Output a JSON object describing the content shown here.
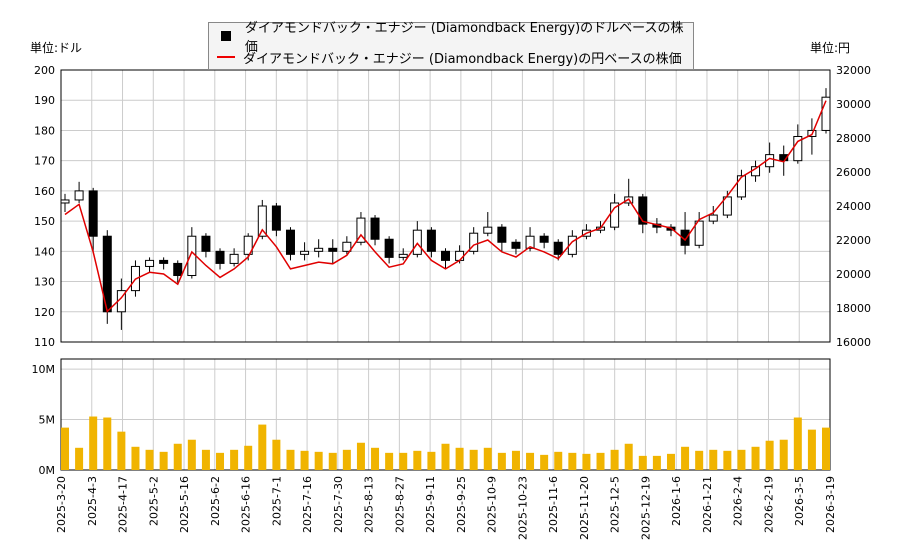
{
  "chart_data": {
    "type": "candlestick+line+bar",
    "left_unit": "単位:ドル",
    "right_unit": "単位:円",
    "legend": [
      "ダイアモンドバック・エナジー (Diamondback Energy)のドルベースの株価",
      "ダイアモンドバック・エナジー (Diamondback Energy)の円ベースの株価"
    ],
    "ylim_left": [
      110,
      200
    ],
    "ylim_right": [
      16000,
      32000
    ],
    "ylim_volume": [
      0,
      11000000
    ],
    "yticks_left": [
      "110",
      "120",
      "130",
      "140",
      "150",
      "160",
      "170",
      "180",
      "190",
      "200"
    ],
    "yticks_right": [
      "16000",
      "18000",
      "20000",
      "22000",
      "24000",
      "26000",
      "28000",
      "30000",
      "32000"
    ],
    "yticks_volume": [
      {
        "v": 0,
        "label": "0M"
      },
      {
        "v": 5000000,
        "label": "5M"
      },
      {
        "v": 10000000,
        "label": "10M"
      }
    ],
    "xticks": [
      "2025-3-20",
      "2025-4-3",
      "2025-4-17",
      "2025-5-2",
      "2025-5-16",
      "2025-6-2",
      "2025-6-16",
      "2025-7-1",
      "2025-7-16",
      "2025-7-30",
      "2025-8-13",
      "2025-8-27",
      "2025-9-11",
      "2025-9-25",
      "2025-10-9",
      "2025-10-23",
      "2025-11-6",
      "2025-11-20",
      "2025-12-5",
      "2025-12-19",
      "2026-1-6",
      "2026-1-21",
      "2026-2-4",
      "2026-2-19",
      "2026-3-5",
      "2026-3-19"
    ],
    "ohlc_usd": [
      [
        156,
        159,
        153,
        157
      ],
      [
        157,
        163,
        156,
        160
      ],
      [
        160,
        161,
        140,
        145
      ],
      [
        145,
        147,
        116,
        120
      ],
      [
        120,
        131,
        114,
        127
      ],
      [
        127,
        137,
        125,
        135
      ],
      [
        135,
        138,
        133,
        137
      ],
      [
        137,
        138,
        134,
        136
      ],
      [
        136,
        137,
        129,
        132
      ],
      [
        132,
        148,
        131,
        145
      ],
      [
        145,
        146,
        138,
        140
      ],
      [
        140,
        141,
        134,
        136
      ],
      [
        136,
        141,
        135,
        139
      ],
      [
        139,
        146,
        137,
        145
      ],
      [
        145,
        157,
        144,
        155
      ],
      [
        155,
        156,
        145,
        147
      ],
      [
        147,
        148,
        137,
        139
      ],
      [
        139,
        143,
        137,
        140
      ],
      [
        140,
        144,
        138,
        141
      ],
      [
        141,
        144,
        136,
        140
      ],
      [
        140,
        145,
        139,
        143
      ],
      [
        143,
        153,
        142,
        151
      ],
      [
        151,
        152,
        142,
        144
      ],
      [
        144,
        145,
        136,
        138
      ],
      [
        138,
        141,
        137,
        139
      ],
      [
        139,
        150,
        138,
        147
      ],
      [
        147,
        148,
        138,
        140
      ],
      [
        140,
        141,
        134,
        137
      ],
      [
        137,
        142,
        136,
        140
      ],
      [
        140,
        148,
        139,
        146
      ],
      [
        146,
        153,
        145,
        148
      ],
      [
        148,
        149,
        140,
        143
      ],
      [
        143,
        144,
        139,
        141
      ],
      [
        141,
        148,
        140,
        145
      ],
      [
        145,
        146,
        141,
        143
      ],
      [
        143,
        144,
        137,
        139
      ],
      [
        139,
        147,
        138,
        145
      ],
      [
        145,
        149,
        144,
        147
      ],
      [
        147,
        150,
        146,
        148
      ],
      [
        148,
        159,
        147,
        156
      ],
      [
        156,
        164,
        155,
        158
      ],
      [
        158,
        159,
        146,
        149
      ],
      [
        149,
        151,
        146,
        148
      ],
      [
        148,
        149,
        145,
        147
      ],
      [
        147,
        153,
        139,
        142
      ],
      [
        142,
        153,
        141,
        150
      ],
      [
        150,
        155,
        149,
        152
      ],
      [
        152,
        160,
        151,
        158
      ],
      [
        158,
        167,
        157,
        165
      ],
      [
        165,
        170,
        163,
        168
      ],
      [
        168,
        176,
        166,
        172
      ],
      [
        172,
        175,
        165,
        170
      ],
      [
        170,
        182,
        169,
        178
      ],
      [
        178,
        184,
        172,
        180
      ],
      [
        180,
        194,
        179,
        191
      ]
    ],
    "close_jpy": [
      23500,
      24100,
      21300,
      17800,
      18600,
      19700,
      20100,
      20000,
      19400,
      21300,
      20500,
      19800,
      20300,
      21000,
      22600,
      21600,
      20300,
      20500,
      20700,
      20600,
      21100,
      22300,
      21300,
      20400,
      20600,
      21800,
      20800,
      20300,
      20800,
      21700,
      22000,
      21300,
      21000,
      21600,
      21300,
      20900,
      21900,
      22400,
      22700,
      23900,
      24400,
      23100,
      22900,
      22700,
      22000,
      23200,
      23600,
      24600,
      25700,
      26200,
      26800,
      26600,
      27800,
      28200,
      30200
    ],
    "volume": [
      4200000,
      2200000,
      5300000,
      5200000,
      3800000,
      2300000,
      2000000,
      1800000,
      2600000,
      3000000,
      2000000,
      1700000,
      2000000,
      2400000,
      4500000,
      3000000,
      2000000,
      1900000,
      1800000,
      1700000,
      2000000,
      2700000,
      2200000,
      1700000,
      1700000,
      1900000,
      1800000,
      2600000,
      2200000,
      2000000,
      2200000,
      1700000,
      1900000,
      1700000,
      1500000,
      1800000,
      1700000,
      1600000,
      1700000,
      2000000,
      2600000,
      1400000,
      1400000,
      1600000,
      2300000,
      1900000,
      2000000,
      1900000,
      2000000,
      2300000,
      2900000,
      3000000,
      5200000,
      4000000,
      4200000
    ],
    "candle_up_color": "#ffffff",
    "candle_down_color": "#000000",
    "jpy_line_color": "#e00000",
    "volume_color": "#f0b400",
    "grid": true
  }
}
